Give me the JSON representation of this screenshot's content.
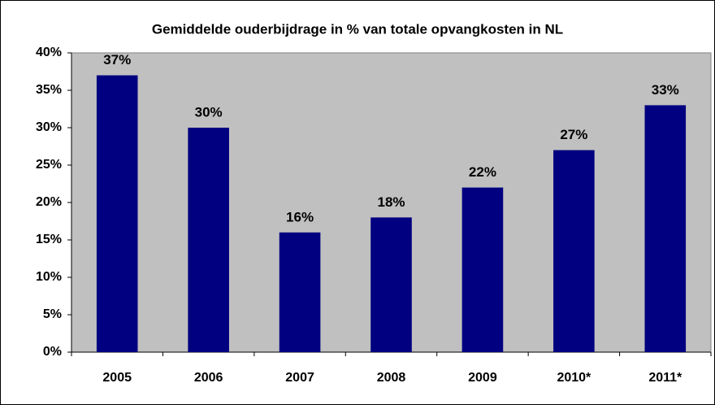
{
  "chart_data": {
    "type": "bar",
    "title": "Gemiddelde ouderbijdrage in % van totale opvangkosten in NL",
    "categories": [
      "2005",
      "2006",
      "2007",
      "2008",
      "2009",
      "2010*",
      "2011*"
    ],
    "values": [
      37,
      30,
      16,
      18,
      22,
      27,
      33
    ],
    "value_labels": [
      "37%",
      "30%",
      "16%",
      "18%",
      "22%",
      "27%",
      "33%"
    ],
    "color": "#000080",
    "ylim": [
      0,
      40
    ],
    "yticks": [
      {
        "value": 0,
        "label": "0%"
      },
      {
        "value": 5,
        "label": "5%"
      },
      {
        "value": 10,
        "label": "10%"
      },
      {
        "value": 15,
        "label": "15%"
      },
      {
        "value": 20,
        "label": "20%"
      },
      {
        "value": 25,
        "label": "25%"
      },
      {
        "value": 30,
        "label": "30%"
      },
      {
        "value": 35,
        "label": "35%"
      },
      {
        "value": 40,
        "label": "40%"
      }
    ],
    "grid": false
  }
}
